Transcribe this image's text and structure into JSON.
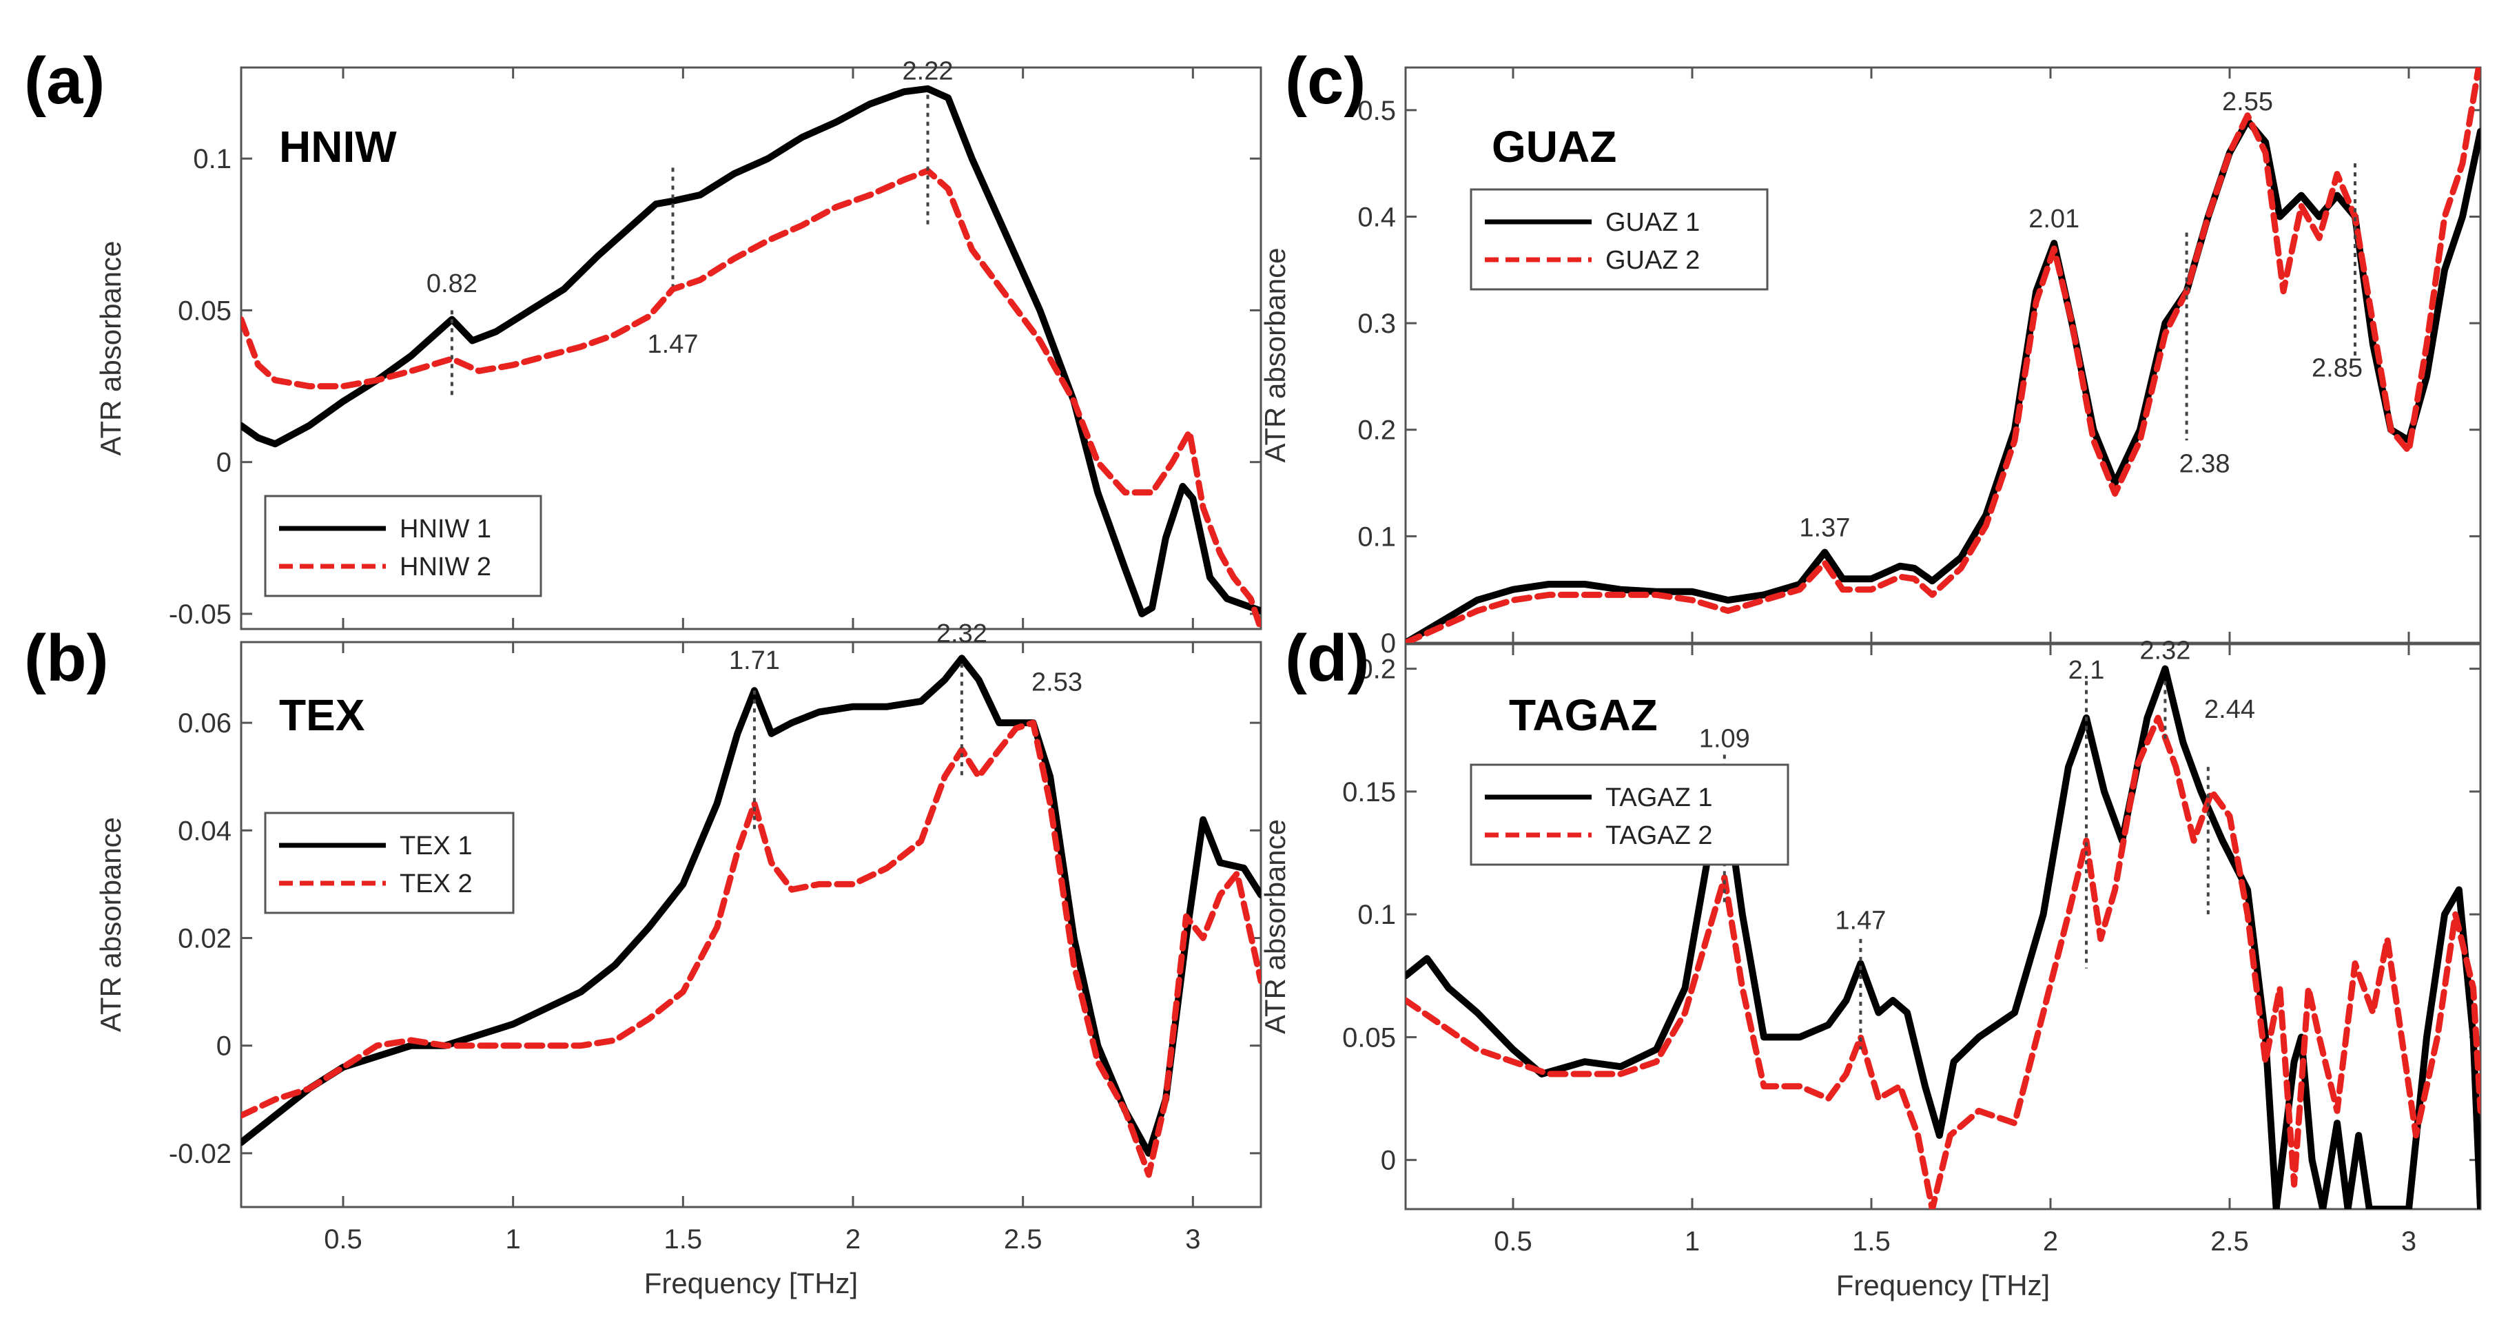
{
  "chart_data": [
    {
      "panel": "(a)",
      "type": "line",
      "title": "HNIW",
      "xlabel": "",
      "ylabel": "ATR absorbance",
      "xlim": [
        0.2,
        3.2
      ],
      "ylim": [
        -0.055,
        0.13
      ],
      "xticks": [
        0.5,
        1,
        1.5,
        2,
        2.5,
        3
      ],
      "yticks": [
        -0.05,
        0,
        0.05,
        0.1
      ],
      "ytick_labels": [
        "-0.05",
        "0",
        "0.05",
        "0.1"
      ],
      "show_xtick_labels": false,
      "legend": "bottom-left",
      "series": [
        {
          "name": "HNIW 1",
          "color": "#000000",
          "style": "solid",
          "x": [
            0.2,
            0.25,
            0.3,
            0.4,
            0.5,
            0.6,
            0.7,
            0.75,
            0.82,
            0.88,
            0.95,
            1.05,
            1.15,
            1.25,
            1.35,
            1.42,
            1.47,
            1.55,
            1.65,
            1.75,
            1.85,
            1.95,
            2.05,
            2.15,
            2.22,
            2.28,
            2.35,
            2.45,
            2.55,
            2.65,
            2.72,
            2.8,
            2.85,
            2.88,
            2.92,
            2.97,
            3.0,
            3.05,
            3.1,
            3.15,
            3.2
          ],
          "y": [
            0.012,
            0.008,
            0.006,
            0.012,
            0.02,
            0.027,
            0.035,
            0.04,
            0.047,
            0.04,
            0.043,
            0.05,
            0.057,
            0.068,
            0.078,
            0.085,
            0.086,
            0.088,
            0.095,
            0.1,
            0.107,
            0.112,
            0.118,
            0.122,
            0.123,
            0.12,
            0.1,
            0.075,
            0.05,
            0.02,
            -0.01,
            -0.035,
            -0.05,
            -0.048,
            -0.025,
            -0.008,
            -0.012,
            -0.038,
            -0.045,
            -0.047,
            -0.049
          ]
        },
        {
          "name": "HNIW 2",
          "color": "#e8231f",
          "style": "dashed",
          "x": [
            0.2,
            0.25,
            0.3,
            0.4,
            0.5,
            0.6,
            0.7,
            0.82,
            0.9,
            1.0,
            1.1,
            1.2,
            1.3,
            1.4,
            1.47,
            1.55,
            1.65,
            1.75,
            1.85,
            1.95,
            2.05,
            2.15,
            2.22,
            2.28,
            2.35,
            2.45,
            2.55,
            2.65,
            2.72,
            2.8,
            2.88,
            2.94,
            2.99,
            3.03,
            3.08,
            3.12,
            3.17,
            3.2
          ],
          "y": [
            0.047,
            0.032,
            0.027,
            0.025,
            0.025,
            0.027,
            0.03,
            0.034,
            0.03,
            0.032,
            0.035,
            0.038,
            0.042,
            0.048,
            0.057,
            0.06,
            0.067,
            0.073,
            0.078,
            0.084,
            0.088,
            0.093,
            0.096,
            0.09,
            0.07,
            0.055,
            0.04,
            0.02,
            0.0,
            -0.01,
            -0.01,
            0.0,
            0.01,
            -0.015,
            -0.03,
            -0.038,
            -0.045,
            -0.055
          ]
        }
      ],
      "peak_markers": [
        {
          "x": 0.82,
          "y_top": 0.05,
          "y_bottom": 0.022
        },
        {
          "x": 1.47,
          "y_top": 0.097,
          "y_bottom": 0.058
        },
        {
          "x": 2.22,
          "y_top": 0.121,
          "y_bottom": 0.078
        }
      ],
      "peak_labels": [
        {
          "text": "0.82",
          "x": 0.82,
          "y": 0.056
        },
        {
          "text": "1.47",
          "x": 1.47,
          "y": 0.036
        },
        {
          "text": "2.22",
          "x": 2.22,
          "y": 0.126
        }
      ]
    },
    {
      "panel": "(b)",
      "type": "line",
      "title": "TEX",
      "xlabel": "Frequency [THz]",
      "ylabel": "ATR absorbance",
      "xlim": [
        0.2,
        3.2
      ],
      "ylim": [
        -0.03,
        0.075
      ],
      "xticks": [
        0.5,
        1,
        1.5,
        2,
        2.5,
        3
      ],
      "xtick_labels": [
        "0.5",
        "1",
        "1.5",
        "2",
        "2.5",
        "3"
      ],
      "yticks": [
        -0.02,
        0,
        0.02,
        0.04,
        0.06
      ],
      "ytick_labels": [
        "-0.02",
        "0",
        "0.02",
        "0.04",
        "0.06"
      ],
      "show_xtick_labels": true,
      "legend": "top-left",
      "series": [
        {
          "name": "TEX 1",
          "color": "#000000",
          "style": "solid",
          "x": [
            0.2,
            0.3,
            0.4,
            0.5,
            0.6,
            0.7,
            0.8,
            0.9,
            1.0,
            1.1,
            1.2,
            1.3,
            1.4,
            1.5,
            1.6,
            1.66,
            1.71,
            1.76,
            1.82,
            1.9,
            2.0,
            2.1,
            2.2,
            2.27,
            2.32,
            2.37,
            2.43,
            2.48,
            2.53,
            2.58,
            2.65,
            2.72,
            2.8,
            2.87,
            2.92,
            2.98,
            3.03,
            3.08,
            3.15,
            3.2
          ],
          "y": [
            -0.018,
            -0.013,
            -0.008,
            -0.004,
            -0.002,
            0.0,
            0.0,
            0.002,
            0.004,
            0.007,
            0.01,
            0.015,
            0.022,
            0.03,
            0.045,
            0.058,
            0.066,
            0.058,
            0.06,
            0.062,
            0.063,
            0.063,
            0.064,
            0.068,
            0.072,
            0.068,
            0.06,
            0.06,
            0.06,
            0.05,
            0.02,
            0.0,
            -0.012,
            -0.02,
            -0.01,
            0.02,
            0.042,
            0.034,
            0.033,
            0.028
          ]
        },
        {
          "name": "TEX 2",
          "color": "#e8231f",
          "style": "dashed",
          "x": [
            0.2,
            0.3,
            0.4,
            0.5,
            0.6,
            0.7,
            0.8,
            0.9,
            1.0,
            1.1,
            1.2,
            1.3,
            1.4,
            1.5,
            1.6,
            1.66,
            1.71,
            1.76,
            1.82,
            1.9,
            2.0,
            2.1,
            2.2,
            2.27,
            2.32,
            2.37,
            2.43,
            2.48,
            2.53,
            2.58,
            2.65,
            2.72,
            2.8,
            2.87,
            2.92,
            2.98,
            3.03,
            3.08,
            3.13,
            3.2
          ],
          "y": [
            -0.013,
            -0.01,
            -0.008,
            -0.004,
            0.0,
            0.001,
            0.0,
            0.0,
            0.0,
            0.0,
            0.0,
            0.001,
            0.005,
            0.01,
            0.022,
            0.036,
            0.045,
            0.034,
            0.029,
            0.03,
            0.03,
            0.033,
            0.038,
            0.05,
            0.055,
            0.05,
            0.055,
            0.059,
            0.06,
            0.045,
            0.015,
            -0.003,
            -0.012,
            -0.024,
            -0.01,
            0.024,
            0.02,
            0.028,
            0.032,
            0.012
          ]
        }
      ],
      "peak_markers": [
        {
          "x": 1.71,
          "y_top": 0.066,
          "y_bottom": 0.04
        },
        {
          "x": 2.32,
          "y_top": 0.071,
          "y_bottom": 0.05
        }
      ],
      "peak_labels": [
        {
          "text": "1.71",
          "x": 1.71,
          "y": 0.07
        },
        {
          "text": "2.32",
          "x": 2.32,
          "y": 0.075
        },
        {
          "text": "2.53",
          "x": 2.6,
          "y": 0.066
        }
      ]
    },
    {
      "panel": "(c)",
      "type": "line",
      "title": "GUAZ",
      "xlabel": "",
      "ylabel": "ATR absorbance",
      "xlim": [
        0.2,
        3.2
      ],
      "ylim": [
        0,
        0.54
      ],
      "xticks": [
        0.5,
        1,
        1.5,
        2,
        2.5,
        3
      ],
      "yticks": [
        0,
        0.1,
        0.2,
        0.3,
        0.4,
        0.5
      ],
      "ytick_labels": [
        "0",
        "0.1",
        "0.2",
        "0.3",
        "0.4",
        "0.5"
      ],
      "show_xtick_labels": false,
      "legend": "top-left",
      "series": [
        {
          "name": "GUAZ 1",
          "color": "#000000",
          "style": "solid",
          "x": [
            0.2,
            0.3,
            0.4,
            0.5,
            0.6,
            0.7,
            0.8,
            0.9,
            1.0,
            1.1,
            1.2,
            1.3,
            1.37,
            1.42,
            1.5,
            1.58,
            1.62,
            1.67,
            1.75,
            1.82,
            1.9,
            1.96,
            2.01,
            2.06,
            2.12,
            2.18,
            2.25,
            2.32,
            2.38,
            2.44,
            2.5,
            2.55,
            2.6,
            2.64,
            2.7,
            2.75,
            2.8,
            2.85,
            2.9,
            2.95,
            3.0,
            3.05,
            3.1,
            3.15,
            3.2
          ],
          "y": [
            0.0,
            0.02,
            0.04,
            0.05,
            0.055,
            0.055,
            0.05,
            0.048,
            0.048,
            0.04,
            0.045,
            0.055,
            0.085,
            0.06,
            0.06,
            0.072,
            0.07,
            0.058,
            0.08,
            0.12,
            0.2,
            0.33,
            0.375,
            0.3,
            0.2,
            0.15,
            0.2,
            0.3,
            0.33,
            0.4,
            0.46,
            0.49,
            0.47,
            0.4,
            0.42,
            0.4,
            0.42,
            0.4,
            0.28,
            0.2,
            0.19,
            0.25,
            0.35,
            0.4,
            0.48
          ]
        },
        {
          "name": "GUAZ 2",
          "color": "#e8231f",
          "style": "dashed",
          "x": [
            0.2,
            0.3,
            0.4,
            0.5,
            0.6,
            0.7,
            0.8,
            0.9,
            1.0,
            1.1,
            1.2,
            1.3,
            1.37,
            1.42,
            1.5,
            1.58,
            1.62,
            1.67,
            1.75,
            1.82,
            1.9,
            1.96,
            2.01,
            2.06,
            2.12,
            2.18,
            2.25,
            2.32,
            2.38,
            2.44,
            2.5,
            2.55,
            2.6,
            2.65,
            2.7,
            2.75,
            2.8,
            2.85,
            2.9,
            2.95,
            3.0,
            3.05,
            3.1,
            3.15,
            3.2
          ],
          "y": [
            0.0,
            0.015,
            0.03,
            0.04,
            0.045,
            0.045,
            0.045,
            0.045,
            0.04,
            0.03,
            0.04,
            0.05,
            0.075,
            0.05,
            0.05,
            0.062,
            0.06,
            0.045,
            0.07,
            0.11,
            0.19,
            0.32,
            0.37,
            0.3,
            0.19,
            0.14,
            0.19,
            0.29,
            0.33,
            0.4,
            0.46,
            0.495,
            0.46,
            0.33,
            0.41,
            0.38,
            0.44,
            0.4,
            0.3,
            0.2,
            0.18,
            0.28,
            0.4,
            0.45,
            0.55
          ]
        }
      ],
      "peak_markers": [
        {
          "x": 2.38,
          "y_top": 0.385,
          "y_bottom": 0.19
        },
        {
          "x": 2.85,
          "y_top": 0.45,
          "y_bottom": 0.265
        }
      ],
      "peak_labels": [
        {
          "text": "1.37",
          "x": 1.37,
          "y": 0.1
        },
        {
          "text": "2.01",
          "x": 2.01,
          "y": 0.39
        },
        {
          "text": "2.55",
          "x": 2.55,
          "y": 0.5
        },
        {
          "text": "2.38",
          "x": 2.43,
          "y": 0.16
        },
        {
          "text": "2.85",
          "x": 2.8,
          "y": 0.25
        }
      ]
    },
    {
      "panel": "(d)",
      "type": "line",
      "title": "TAGAZ",
      "xlabel": "Frequency [THz]",
      "ylabel": "ATR absorbance",
      "xlim": [
        0.2,
        3.2
      ],
      "ylim": [
        -0.02,
        0.21
      ],
      "xticks": [
        0.5,
        1,
        1.5,
        2,
        2.5,
        3
      ],
      "xtick_labels": [
        "0.5",
        "1",
        "1.5",
        "2",
        "2.5",
        "3"
      ],
      "yticks": [
        0,
        0.05,
        0.1,
        0.15,
        0.2
      ],
      "ytick_labels": [
        "0",
        "0.05",
        "0.1",
        "0.15",
        "0.2"
      ],
      "show_xtick_labels": true,
      "legend": "top-left",
      "series": [
        {
          "name": "TAGAZ 1",
          "color": "#000000",
          "style": "solid",
          "x": [
            0.2,
            0.26,
            0.32,
            0.4,
            0.5,
            0.58,
            0.7,
            0.8,
            0.9,
            0.98,
            1.04,
            1.09,
            1.14,
            1.2,
            1.3,
            1.38,
            1.43,
            1.47,
            1.52,
            1.56,
            1.6,
            1.65,
            1.69,
            1.73,
            1.8,
            1.9,
            1.98,
            2.05,
            2.1,
            2.15,
            2.2,
            2.27,
            2.32,
            2.37,
            2.42,
            2.48,
            2.55,
            2.6,
            2.63,
            2.68,
            2.7,
            2.73,
            2.76,
            2.8,
            2.83,
            2.86,
            2.89,
            2.93,
            2.96,
            3.0,
            3.05,
            3.1,
            3.14,
            3.18,
            3.2
          ],
          "y": [
            0.075,
            0.082,
            0.07,
            0.06,
            0.045,
            0.035,
            0.04,
            0.038,
            0.045,
            0.07,
            0.12,
            0.152,
            0.1,
            0.05,
            0.05,
            0.055,
            0.065,
            0.08,
            0.06,
            0.065,
            0.06,
            0.03,
            0.01,
            0.04,
            0.05,
            0.06,
            0.1,
            0.16,
            0.18,
            0.15,
            0.13,
            0.18,
            0.2,
            0.17,
            0.15,
            0.13,
            0.11,
            0.05,
            -0.02,
            0.04,
            0.05,
            0.0,
            -0.02,
            0.015,
            -0.02,
            0.01,
            -0.02,
            -0.02,
            -0.02,
            -0.02,
            0.05,
            0.1,
            0.11,
            0.05,
            -0.02
          ]
        },
        {
          "name": "TAGAZ 2",
          "color": "#e8231f",
          "style": "dashed",
          "x": [
            0.2,
            0.3,
            0.4,
            0.5,
            0.6,
            0.7,
            0.8,
            0.9,
            0.98,
            1.04,
            1.09,
            1.14,
            1.2,
            1.3,
            1.38,
            1.43,
            1.47,
            1.52,
            1.58,
            1.63,
            1.67,
            1.72,
            1.8,
            1.9,
            1.98,
            2.05,
            2.1,
            2.14,
            2.18,
            2.24,
            2.3,
            2.35,
            2.4,
            2.45,
            2.5,
            2.55,
            2.6,
            2.64,
            2.68,
            2.72,
            2.75,
            2.8,
            2.85,
            2.9,
            2.94,
            2.98,
            3.02,
            3.08,
            3.13,
            3.18,
            3.2
          ],
          "y": [
            0.065,
            0.055,
            0.045,
            0.04,
            0.035,
            0.035,
            0.035,
            0.04,
            0.06,
            0.09,
            0.115,
            0.07,
            0.03,
            0.03,
            0.025,
            0.035,
            0.05,
            0.025,
            0.03,
            0.01,
            -0.02,
            0.01,
            0.02,
            0.015,
            0.06,
            0.1,
            0.13,
            0.09,
            0.11,
            0.16,
            0.18,
            0.16,
            0.13,
            0.15,
            0.14,
            0.1,
            0.04,
            0.07,
            -0.01,
            0.07,
            0.05,
            0.02,
            0.08,
            0.06,
            0.09,
            0.05,
            0.01,
            0.05,
            0.1,
            0.07,
            0.02
          ]
        }
      ],
      "peak_markers": [
        {
          "x": 1.09,
          "y_top": 0.165,
          "y_bottom": 0.105
        },
        {
          "x": 1.47,
          "y_top": 0.09,
          "y_bottom": 0.045
        },
        {
          "x": 2.1,
          "y_top": 0.195,
          "y_bottom": 0.078
        },
        {
          "x": 2.32,
          "y_top": 0.195,
          "y_bottom": 0.17
        },
        {
          "x": 2.44,
          "y_top": 0.16,
          "y_bottom": 0.1
        }
      ],
      "peak_labels": [
        {
          "text": "1.09",
          "x": 1.09,
          "y": 0.168
        },
        {
          "text": "1.47",
          "x": 1.47,
          "y": 0.094
        },
        {
          "text": "2.1",
          "x": 2.1,
          "y": 0.196
        },
        {
          "text": "2.32",
          "x": 2.32,
          "y": 0.204
        },
        {
          "text": "2.44",
          "x": 2.5,
          "y": 0.18
        }
      ]
    }
  ]
}
